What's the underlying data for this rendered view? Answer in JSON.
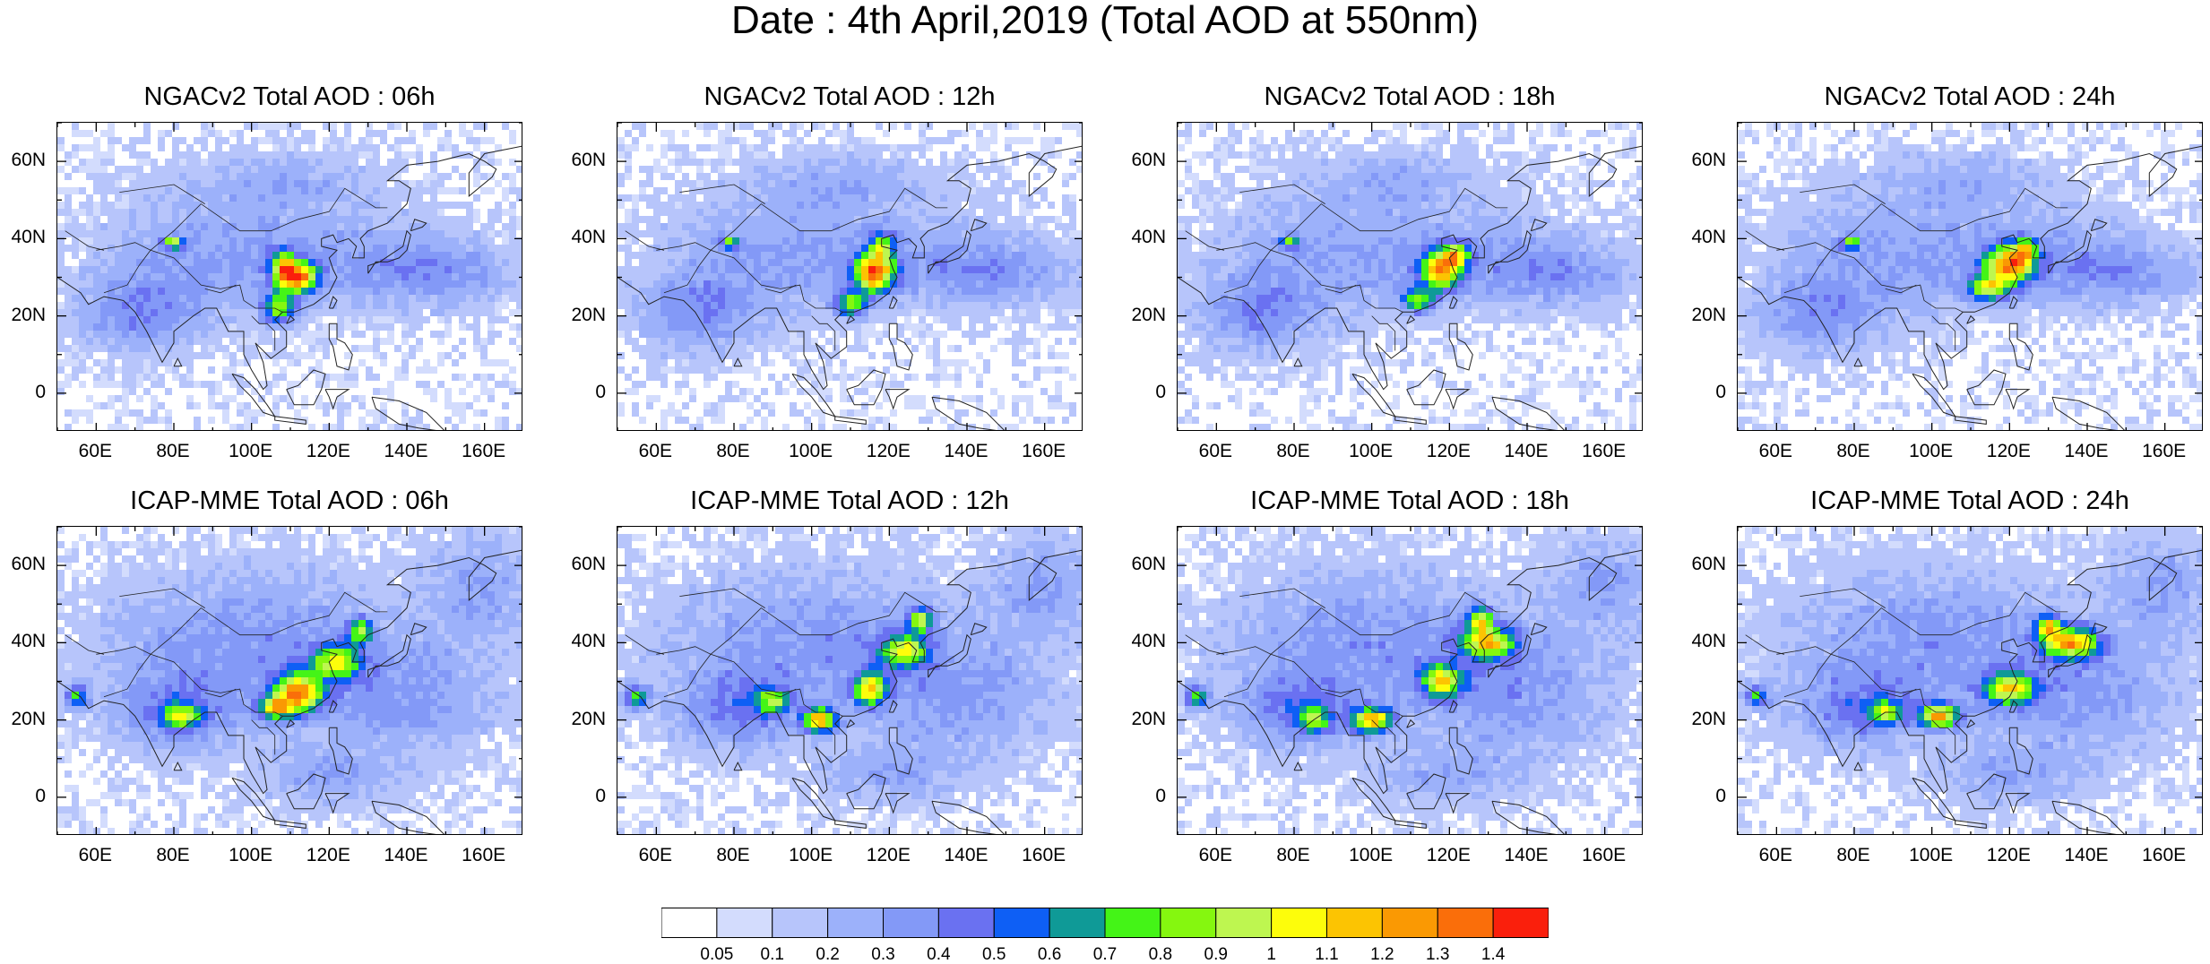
{
  "figure": {
    "title": "Date : 4th April,2019 (Total AOD at 550nm)"
  },
  "axes": {
    "lat_ticks": [
      "60N",
      "40N",
      "20N",
      "0"
    ],
    "lat_values": [
      60,
      40,
      20,
      0
    ],
    "lon_ticks": [
      "60E",
      "80E",
      "100E",
      "120E",
      "140E",
      "160E"
    ],
    "lon_values": [
      60,
      80,
      100,
      120,
      140,
      160
    ],
    "lon_range": [
      50,
      170
    ],
    "lat_range": [
      -10,
      70
    ]
  },
  "panels": [
    {
      "id": "ngac-06",
      "title": "NGACv2 Total AOD : 06h",
      "model": "NGACv2",
      "hour": 6
    },
    {
      "id": "ngac-12",
      "title": "NGACv2 Total AOD : 12h",
      "model": "NGACv2",
      "hour": 12
    },
    {
      "id": "ngac-18",
      "title": "NGACv2 Total AOD : 18h",
      "model": "NGACv2",
      "hour": 18
    },
    {
      "id": "ngac-24",
      "title": "NGACv2 Total AOD : 24h",
      "model": "NGACv2",
      "hour": 24
    },
    {
      "id": "icap-06",
      "title": "ICAP-MME Total AOD : 06h",
      "model": "ICAP-MME",
      "hour": 6
    },
    {
      "id": "icap-12",
      "title": "ICAP-MME Total AOD : 12h",
      "model": "ICAP-MME",
      "hour": 12
    },
    {
      "id": "icap-18",
      "title": "ICAP-MME Total AOD : 18h",
      "model": "ICAP-MME",
      "hour": 18
    },
    {
      "id": "icap-24",
      "title": "ICAP-MME Total AOD : 24h",
      "model": "ICAP-MME",
      "hour": 24
    }
  ],
  "colorbar": {
    "labels": [
      "0.05",
      "0.1",
      "0.2",
      "0.3",
      "0.4",
      "0.5",
      "0.6",
      "0.7",
      "0.8",
      "0.9",
      "1",
      "1.1",
      "1.2",
      "1.3",
      "1.4"
    ],
    "colors": [
      "#ffffff",
      "#d3dcfd",
      "#b7c5fb",
      "#9cb1fa",
      "#8399f7",
      "#6a71f1",
      "#0e5ff5",
      "#0f9a97",
      "#44f417",
      "#85f70f",
      "#bef650",
      "#fdfd0b",
      "#fcc402",
      "#fa9903",
      "#fa6e0a",
      "#fa1f0c"
    ]
  }
}
